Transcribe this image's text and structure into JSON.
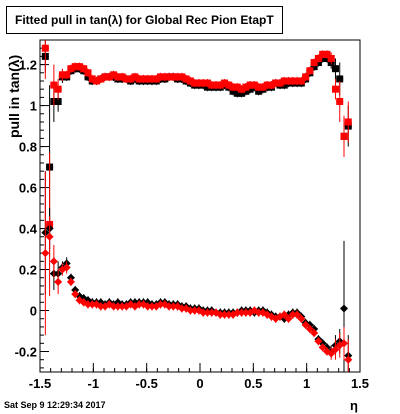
{
  "title": "Fitted pull in tan(λ) for Global Rec Pion EtapT",
  "ylabel": "pull in tan(λ)",
  "xlabel": "η",
  "timestamp": "Sat Sep  9 12:29:34 2017",
  "chart_data": {
    "type": "scatter",
    "title": "Fitted pull in tan(λ) for Global Rec Pion EtapT",
    "xlabel": "η",
    "ylabel": "pull in tan(λ)",
    "xlim": [
      -1.5,
      1.5
    ],
    "ylim": [
      -0.3,
      1.32
    ],
    "x_ticks": [
      -1.5,
      -1,
      -0.5,
      0,
      0.5,
      1,
      1.5
    ],
    "x_tick_labels": [
      "-1.5",
      "-1",
      "-0.5",
      "0",
      "0.5",
      "1",
      "1.5"
    ],
    "y_ticks": [
      -0.2,
      0,
      0.2,
      0.4,
      0.6,
      0.8,
      1,
      1.2
    ],
    "y_tick_labels": [
      "-0.2",
      "0",
      "0.2",
      "0.4",
      "0.6",
      "0.8",
      "1",
      "1.2"
    ],
    "grid": false,
    "series": [
      {
        "marker": "square",
        "color": "#000000",
        "x": [
          -1.45,
          -1.41,
          -1.37,
          -1.33,
          -1.29,
          -1.25,
          -1.21,
          -1.17,
          -1.13,
          -1.09,
          -1.05,
          -1.01,
          -0.97,
          -0.93,
          -0.89,
          -0.85,
          -0.81,
          -0.77,
          -0.73,
          -0.69,
          -0.65,
          -0.61,
          -0.57,
          -0.53,
          -0.49,
          -0.45,
          -0.41,
          -0.37,
          -0.33,
          -0.29,
          -0.25,
          -0.21,
          -0.17,
          -0.13,
          -0.09,
          -0.05,
          -0.01,
          0.03,
          0.07,
          0.11,
          0.15,
          0.19,
          0.23,
          0.27,
          0.31,
          0.35,
          0.39,
          0.43,
          0.47,
          0.51,
          0.55,
          0.59,
          0.63,
          0.67,
          0.71,
          0.75,
          0.79,
          0.83,
          0.87,
          0.91,
          0.95,
          0.99,
          1.03,
          1.07,
          1.11,
          1.15,
          1.19,
          1.23,
          1.27,
          1.31,
          1.35,
          1.39
        ],
        "y": [
          1.24,
          0.7,
          1.02,
          1.02,
          1.14,
          1.14,
          1.17,
          1.18,
          1.18,
          1.17,
          1.14,
          1.12,
          1.12,
          1.13,
          1.14,
          1.14,
          1.14,
          1.13,
          1.13,
          1.13,
          1.12,
          1.13,
          1.12,
          1.12,
          1.12,
          1.12,
          1.12,
          1.13,
          1.13,
          1.14,
          1.14,
          1.13,
          1.13,
          1.12,
          1.11,
          1.1,
          1.1,
          1.1,
          1.09,
          1.09,
          1.09,
          1.09,
          1.1,
          1.09,
          1.07,
          1.06,
          1.06,
          1.07,
          1.08,
          1.09,
          1.07,
          1.08,
          1.09,
          1.09,
          1.11,
          1.1,
          1.1,
          1.11,
          1.11,
          1.11,
          1.11,
          1.13,
          1.16,
          1.19,
          1.21,
          1.23,
          1.23,
          1.21,
          1.18,
          1.13,
          0.85,
          0.9
        ],
        "err": [
          0.08,
          0.4,
          0.1,
          0.05,
          0.03,
          0.02,
          0.02,
          0.02,
          0.02,
          0.02,
          0.02,
          0.02,
          0.02,
          0.02,
          0.02,
          0.02,
          0.02,
          0.02,
          0.02,
          0.02,
          0.02,
          0.02,
          0.02,
          0.02,
          0.02,
          0.02,
          0.02,
          0.02,
          0.02,
          0.02,
          0.02,
          0.02,
          0.02,
          0.02,
          0.02,
          0.02,
          0.02,
          0.02,
          0.02,
          0.02,
          0.02,
          0.02,
          0.02,
          0.02,
          0.02,
          0.02,
          0.02,
          0.02,
          0.02,
          0.02,
          0.02,
          0.02,
          0.02,
          0.02,
          0.02,
          0.02,
          0.02,
          0.02,
          0.02,
          0.02,
          0.02,
          0.02,
          0.02,
          0.02,
          0.02,
          0.02,
          0.02,
          0.03,
          0.05,
          0.08,
          0.1,
          0.1
        ]
      },
      {
        "marker": "square",
        "color": "#ff0000",
        "x": [
          -1.45,
          -1.41,
          -1.37,
          -1.33,
          -1.29,
          -1.25,
          -1.21,
          -1.17,
          -1.13,
          -1.09,
          -1.05,
          -1.01,
          -0.97,
          -0.93,
          -0.89,
          -0.85,
          -0.81,
          -0.77,
          -0.73,
          -0.69,
          -0.65,
          -0.61,
          -0.57,
          -0.53,
          -0.49,
          -0.45,
          -0.41,
          -0.37,
          -0.33,
          -0.29,
          -0.25,
          -0.21,
          -0.17,
          -0.13,
          -0.09,
          -0.05,
          -0.01,
          0.03,
          0.07,
          0.11,
          0.15,
          0.19,
          0.23,
          0.27,
          0.31,
          0.35,
          0.39,
          0.43,
          0.47,
          0.51,
          0.55,
          0.59,
          0.63,
          0.67,
          0.71,
          0.75,
          0.79,
          0.83,
          0.87,
          0.91,
          0.95,
          0.99,
          1.03,
          1.07,
          1.11,
          1.15,
          1.19,
          1.23,
          1.27,
          1.31,
          1.35,
          1.39
        ],
        "y": [
          1.28,
          0.42,
          1.1,
          1.08,
          1.15,
          1.15,
          1.18,
          1.19,
          1.19,
          1.18,
          1.16,
          1.13,
          1.12,
          1.13,
          1.14,
          1.14,
          1.15,
          1.14,
          1.14,
          1.13,
          1.13,
          1.14,
          1.13,
          1.13,
          1.13,
          1.13,
          1.13,
          1.14,
          1.14,
          1.14,
          1.14,
          1.14,
          1.14,
          1.13,
          1.12,
          1.11,
          1.11,
          1.11,
          1.11,
          1.1,
          1.1,
          1.1,
          1.11,
          1.1,
          1.09,
          1.09,
          1.08,
          1.09,
          1.1,
          1.1,
          1.09,
          1.09,
          1.1,
          1.1,
          1.11,
          1.11,
          1.12,
          1.12,
          1.12,
          1.12,
          1.12,
          1.14,
          1.17,
          1.21,
          1.23,
          1.25,
          1.25,
          1.23,
          1.08,
          1.02,
          0.85,
          0.92
        ],
        "err": [
          0.15,
          0.35,
          0.1,
          0.05,
          0.03,
          0.02,
          0.02,
          0.02,
          0.02,
          0.02,
          0.02,
          0.02,
          0.02,
          0.02,
          0.02,
          0.02,
          0.02,
          0.02,
          0.02,
          0.02,
          0.02,
          0.02,
          0.02,
          0.02,
          0.02,
          0.02,
          0.02,
          0.02,
          0.02,
          0.02,
          0.02,
          0.02,
          0.02,
          0.02,
          0.02,
          0.02,
          0.02,
          0.02,
          0.02,
          0.02,
          0.02,
          0.02,
          0.02,
          0.02,
          0.02,
          0.02,
          0.02,
          0.02,
          0.02,
          0.02,
          0.02,
          0.02,
          0.02,
          0.02,
          0.02,
          0.02,
          0.02,
          0.02,
          0.02,
          0.02,
          0.02,
          0.02,
          0.02,
          0.02,
          0.02,
          0.02,
          0.02,
          0.03,
          0.05,
          0.1,
          0.1,
          0.1
        ]
      },
      {
        "marker": "diamond",
        "color": "#000000",
        "x": [
          -1.45,
          -1.41,
          -1.37,
          -1.33,
          -1.29,
          -1.25,
          -1.21,
          -1.17,
          -1.13,
          -1.09,
          -1.05,
          -1.01,
          -0.97,
          -0.93,
          -0.89,
          -0.85,
          -0.81,
          -0.77,
          -0.73,
          -0.69,
          -0.65,
          -0.61,
          -0.57,
          -0.53,
          -0.49,
          -0.45,
          -0.41,
          -0.37,
          -0.33,
          -0.29,
          -0.25,
          -0.21,
          -0.17,
          -0.13,
          -0.09,
          -0.05,
          -0.01,
          0.03,
          0.07,
          0.11,
          0.15,
          0.19,
          0.23,
          0.27,
          0.31,
          0.35,
          0.39,
          0.43,
          0.47,
          0.51,
          0.55,
          0.59,
          0.63,
          0.67,
          0.71,
          0.75,
          0.79,
          0.83,
          0.87,
          0.91,
          0.95,
          0.99,
          1.03,
          1.07,
          1.11,
          1.15,
          1.19,
          1.23,
          1.27,
          1.31,
          1.35,
          1.39
        ],
        "y": [
          0.38,
          0.4,
          0.18,
          0.18,
          0.21,
          0.23,
          0.16,
          0.1,
          0.07,
          0.06,
          0.05,
          0.04,
          0.04,
          0.04,
          0.03,
          0.04,
          0.03,
          0.04,
          0.03,
          0.03,
          0.04,
          0.04,
          0.04,
          0.04,
          0.04,
          0.03,
          0.03,
          0.04,
          0.04,
          0.03,
          0.03,
          0.03,
          0.02,
          0.02,
          0.01,
          0.01,
          0.01,
          0.0,
          0.0,
          0.0,
          -0.01,
          -0.01,
          -0.01,
          -0.01,
          -0.01,
          -0.01,
          0.0,
          0.0,
          0.0,
          -0.01,
          0.0,
          0.0,
          -0.01,
          -0.02,
          -0.03,
          -0.03,
          -0.04,
          -0.02,
          -0.01,
          -0.01,
          -0.03,
          -0.06,
          -0.07,
          -0.09,
          -0.14,
          -0.16,
          -0.18,
          -0.2,
          -0.17,
          -0.15,
          0.01,
          -0.22
        ],
        "err": [
          0.3,
          0.1,
          0.08,
          0.06,
          0.03,
          0.03,
          0.02,
          0.02,
          0.02,
          0.02,
          0.02,
          0.02,
          0.02,
          0.02,
          0.02,
          0.02,
          0.02,
          0.02,
          0.02,
          0.02,
          0.02,
          0.02,
          0.02,
          0.02,
          0.02,
          0.02,
          0.02,
          0.02,
          0.02,
          0.02,
          0.02,
          0.02,
          0.02,
          0.02,
          0.02,
          0.02,
          0.02,
          0.02,
          0.02,
          0.02,
          0.02,
          0.02,
          0.02,
          0.02,
          0.02,
          0.02,
          0.02,
          0.02,
          0.02,
          0.02,
          0.02,
          0.02,
          0.02,
          0.02,
          0.02,
          0.02,
          0.02,
          0.02,
          0.02,
          0.02,
          0.02,
          0.02,
          0.02,
          0.02,
          0.02,
          0.02,
          0.02,
          0.03,
          0.05,
          0.06,
          0.33,
          0.1
        ]
      },
      {
        "marker": "diamond",
        "color": "#ff0000",
        "x": [
          -1.45,
          -1.41,
          -1.37,
          -1.33,
          -1.29,
          -1.25,
          -1.21,
          -1.17,
          -1.13,
          -1.09,
          -1.05,
          -1.01,
          -0.97,
          -0.93,
          -0.89,
          -0.85,
          -0.81,
          -0.77,
          -0.73,
          -0.69,
          -0.65,
          -0.61,
          -0.57,
          -0.53,
          -0.49,
          -0.45,
          -0.41,
          -0.37,
          -0.33,
          -0.29,
          -0.25,
          -0.21,
          -0.17,
          -0.13,
          -0.09,
          -0.05,
          -0.01,
          0.03,
          0.07,
          0.11,
          0.15,
          0.19,
          0.23,
          0.27,
          0.31,
          0.35,
          0.39,
          0.43,
          0.47,
          0.51,
          0.55,
          0.59,
          0.63,
          0.67,
          0.71,
          0.75,
          0.79,
          0.83,
          0.87,
          0.91,
          0.95,
          0.99,
          1.03,
          1.07,
          1.11,
          1.15,
          1.19,
          1.23,
          1.27,
          1.31,
          1.35,
          1.39
        ],
        "y": [
          0.28,
          0.36,
          0.24,
          0.14,
          0.2,
          0.21,
          0.14,
          0.08,
          0.05,
          0.04,
          0.03,
          0.03,
          0.03,
          0.02,
          0.02,
          0.03,
          0.02,
          0.02,
          0.02,
          0.02,
          0.03,
          0.02,
          0.03,
          0.03,
          0.02,
          0.02,
          0.02,
          0.03,
          0.03,
          0.02,
          0.02,
          0.02,
          0.01,
          0.01,
          0.0,
          0.0,
          0.0,
          -0.01,
          -0.01,
          -0.01,
          -0.01,
          -0.02,
          -0.02,
          -0.02,
          -0.02,
          -0.01,
          -0.01,
          -0.01,
          -0.01,
          0.0,
          -0.01,
          -0.01,
          -0.02,
          -0.03,
          -0.04,
          -0.03,
          -0.02,
          -0.04,
          -0.02,
          -0.02,
          -0.04,
          -0.07,
          -0.09,
          -0.11,
          -0.15,
          -0.18,
          -0.2,
          -0.21,
          -0.19,
          -0.17,
          -0.16,
          -0.24
        ],
        "err": [
          0.4,
          0.1,
          0.08,
          0.06,
          0.03,
          0.03,
          0.02,
          0.02,
          0.02,
          0.02,
          0.02,
          0.02,
          0.02,
          0.02,
          0.02,
          0.02,
          0.02,
          0.02,
          0.02,
          0.02,
          0.02,
          0.02,
          0.02,
          0.02,
          0.02,
          0.02,
          0.02,
          0.02,
          0.02,
          0.02,
          0.02,
          0.02,
          0.02,
          0.02,
          0.02,
          0.02,
          0.02,
          0.02,
          0.02,
          0.02,
          0.02,
          0.02,
          0.02,
          0.02,
          0.02,
          0.02,
          0.02,
          0.02,
          0.02,
          0.02,
          0.02,
          0.02,
          0.02,
          0.02,
          0.02,
          0.02,
          0.02,
          0.02,
          0.02,
          0.02,
          0.02,
          0.02,
          0.02,
          0.02,
          0.02,
          0.02,
          0.02,
          0.03,
          0.05,
          0.06,
          0.08,
          0.1
        ]
      }
    ]
  }
}
